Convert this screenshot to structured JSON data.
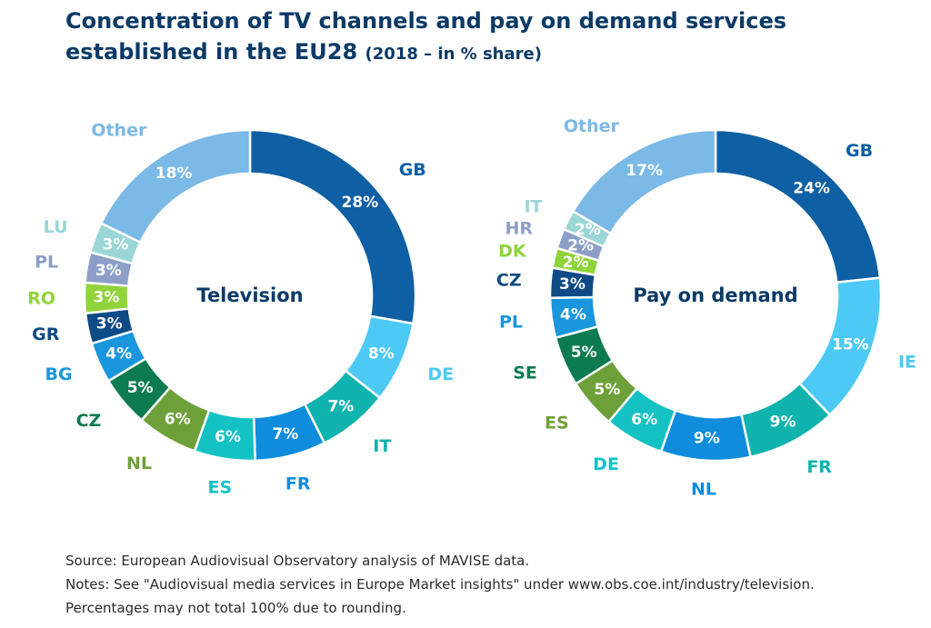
{
  "title": {
    "main": "Concentration of TV channels and pay on demand services established in the EU28",
    "sub": "(2018 – in % share)"
  },
  "chart_data": [
    {
      "type": "pie",
      "variant": "donut",
      "center_label": "Television",
      "slices": [
        {
          "label": "GB",
          "value": 28,
          "value_label": "28%",
          "color": "#0e5fa4"
        },
        {
          "label": "DE",
          "value": 8,
          "value_label": "8%",
          "color": "#4cc9f4"
        },
        {
          "label": "IT",
          "value": 7,
          "value_label": "7%",
          "color": "#10b3ad"
        },
        {
          "label": "FR",
          "value": 7,
          "value_label": "7%",
          "color": "#0f8ddc"
        },
        {
          "label": "ES",
          "value": 6,
          "value_label": "6%",
          "color": "#14c2c4"
        },
        {
          "label": "NL",
          "value": 6,
          "value_label": "6%",
          "color": "#6ea039"
        },
        {
          "label": "CZ",
          "value": 5,
          "value_label": "5%",
          "color": "#0c7b4f"
        },
        {
          "label": "BG",
          "value": 4,
          "value_label": "4%",
          "color": "#1996dc"
        },
        {
          "label": "GR",
          "value": 3,
          "value_label": "3%",
          "color": "#0e4a86"
        },
        {
          "label": "RO",
          "value": 3,
          "value_label": "3%",
          "color": "#8fd43a"
        },
        {
          "label": "PL",
          "value": 3,
          "value_label": "3%",
          "color": "#8d9fc8"
        },
        {
          "label": "LU",
          "value": 3,
          "value_label": "3%",
          "color": "#9ad6d6"
        },
        {
          "label": "Other",
          "value": 18,
          "value_label": "18%",
          "color": "#7bb9e6"
        }
      ]
    },
    {
      "type": "pie",
      "variant": "donut",
      "center_label": "Pay on demand",
      "slices": [
        {
          "label": "GB",
          "value": 24,
          "value_label": "24%",
          "color": "#0e5fa4"
        },
        {
          "label": "IE",
          "value": 15,
          "value_label": "15%",
          "color": "#4cc9f4"
        },
        {
          "label": "FR",
          "value": 9,
          "value_label": "9%",
          "color": "#10b3ad"
        },
        {
          "label": "NL",
          "value": 9,
          "value_label": "9%",
          "color": "#0f8ddc"
        },
        {
          "label": "DE",
          "value": 6,
          "value_label": "6%",
          "color": "#14c2c4"
        },
        {
          "label": "ES",
          "value": 5,
          "value_label": "5%",
          "color": "#6ea039"
        },
        {
          "label": "SE",
          "value": 5,
          "value_label": "5%",
          "color": "#0c7b4f"
        },
        {
          "label": "PL",
          "value": 4,
          "value_label": "4%",
          "color": "#1996dc"
        },
        {
          "label": "CZ",
          "value": 3,
          "value_label": "3%",
          "color": "#0e4a86"
        },
        {
          "label": "DK",
          "value": 2,
          "value_label": "2%",
          "color": "#8fd43a"
        },
        {
          "label": "HR",
          "value": 2,
          "value_label": "2%",
          "color": "#8d9fc8"
        },
        {
          "label": "IT",
          "value": 2,
          "value_label": "2%",
          "color": "#9ad6d6"
        },
        {
          "label": "Other",
          "value": 17,
          "value_label": "17%",
          "color": "#7bb9e6"
        }
      ]
    }
  ],
  "footer": {
    "source": "Source: European Audiovisual Observatory analysis of MAVISE data.",
    "notes": "Notes: See \"Audiovisual media services in Europe Market insights\" under www.obs.coe.int/industry/television.",
    "rounding": "Percentages may not total 100% due to rounding."
  }
}
